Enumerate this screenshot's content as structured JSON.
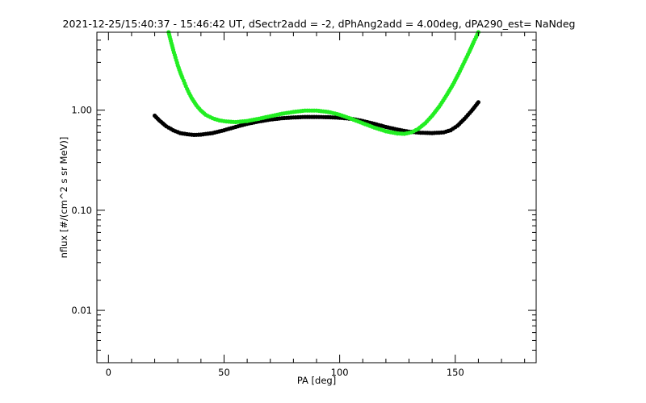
{
  "chart_data": {
    "type": "scatter",
    "title": "2021-12-25/15:40:37 - 15:46:42 UT, dSectr2add = -2, dPhAng2add = 4.00deg, dPA290_est=   NaNdeg",
    "xlabel": "PA [deg]",
    "ylabel": "nflux [#/(cm^2 s sr MeV)]",
    "xlim": [
      -5,
      185
    ],
    "ylim": [
      0.003,
      6
    ],
    "yscale": "log",
    "x_ticks": [
      0,
      50,
      100,
      150
    ],
    "x_tick_labels": [
      "0",
      "50",
      "100",
      "150"
    ],
    "y_ticks": [
      0.01,
      0.1,
      1.0
    ],
    "y_tick_labels": [
      "0.01",
      "0.10",
      "1.00"
    ],
    "grid": false,
    "series": [
      {
        "color": "#000000",
        "x": [
          20,
          22,
          25,
          28,
          31,
          34,
          37,
          40,
          45,
          50,
          55,
          60,
          65,
          70,
          75,
          80,
          85,
          90,
          95,
          100,
          105,
          110,
          115,
          120,
          125,
          130,
          135,
          140,
          145,
          148,
          151,
          154,
          157,
          160
        ],
        "y": [
          0.88,
          0.79,
          0.69,
          0.63,
          0.59,
          0.575,
          0.565,
          0.57,
          0.59,
          0.63,
          0.68,
          0.73,
          0.77,
          0.805,
          0.83,
          0.845,
          0.855,
          0.855,
          0.85,
          0.84,
          0.82,
          0.78,
          0.73,
          0.68,
          0.64,
          0.61,
          0.595,
          0.59,
          0.6,
          0.63,
          0.7,
          0.82,
          0.98,
          1.2
        ]
      },
      {
        "color": "#22ee22",
        "x": [
          26,
          27,
          28,
          29,
          30,
          31,
          32,
          33,
          34,
          35,
          36,
          38,
          40,
          42,
          45,
          48,
          51,
          55,
          60,
          65,
          70,
          75,
          80,
          85,
          90,
          95,
          100,
          105,
          110,
          115,
          120,
          125,
          128,
          131,
          134,
          137,
          140,
          143,
          146,
          149,
          152,
          154,
          156,
          158,
          160
        ],
        "y": [
          6.0,
          4.9,
          4.0,
          3.35,
          2.8,
          2.4,
          2.1,
          1.85,
          1.63,
          1.46,
          1.32,
          1.12,
          0.99,
          0.9,
          0.83,
          0.79,
          0.77,
          0.76,
          0.78,
          0.82,
          0.87,
          0.92,
          0.96,
          0.99,
          0.99,
          0.96,
          0.9,
          0.82,
          0.74,
          0.67,
          0.615,
          0.585,
          0.58,
          0.6,
          0.65,
          0.74,
          0.88,
          1.08,
          1.38,
          1.8,
          2.45,
          3.05,
          3.8,
          4.8,
          6.0
        ]
      }
    ]
  }
}
